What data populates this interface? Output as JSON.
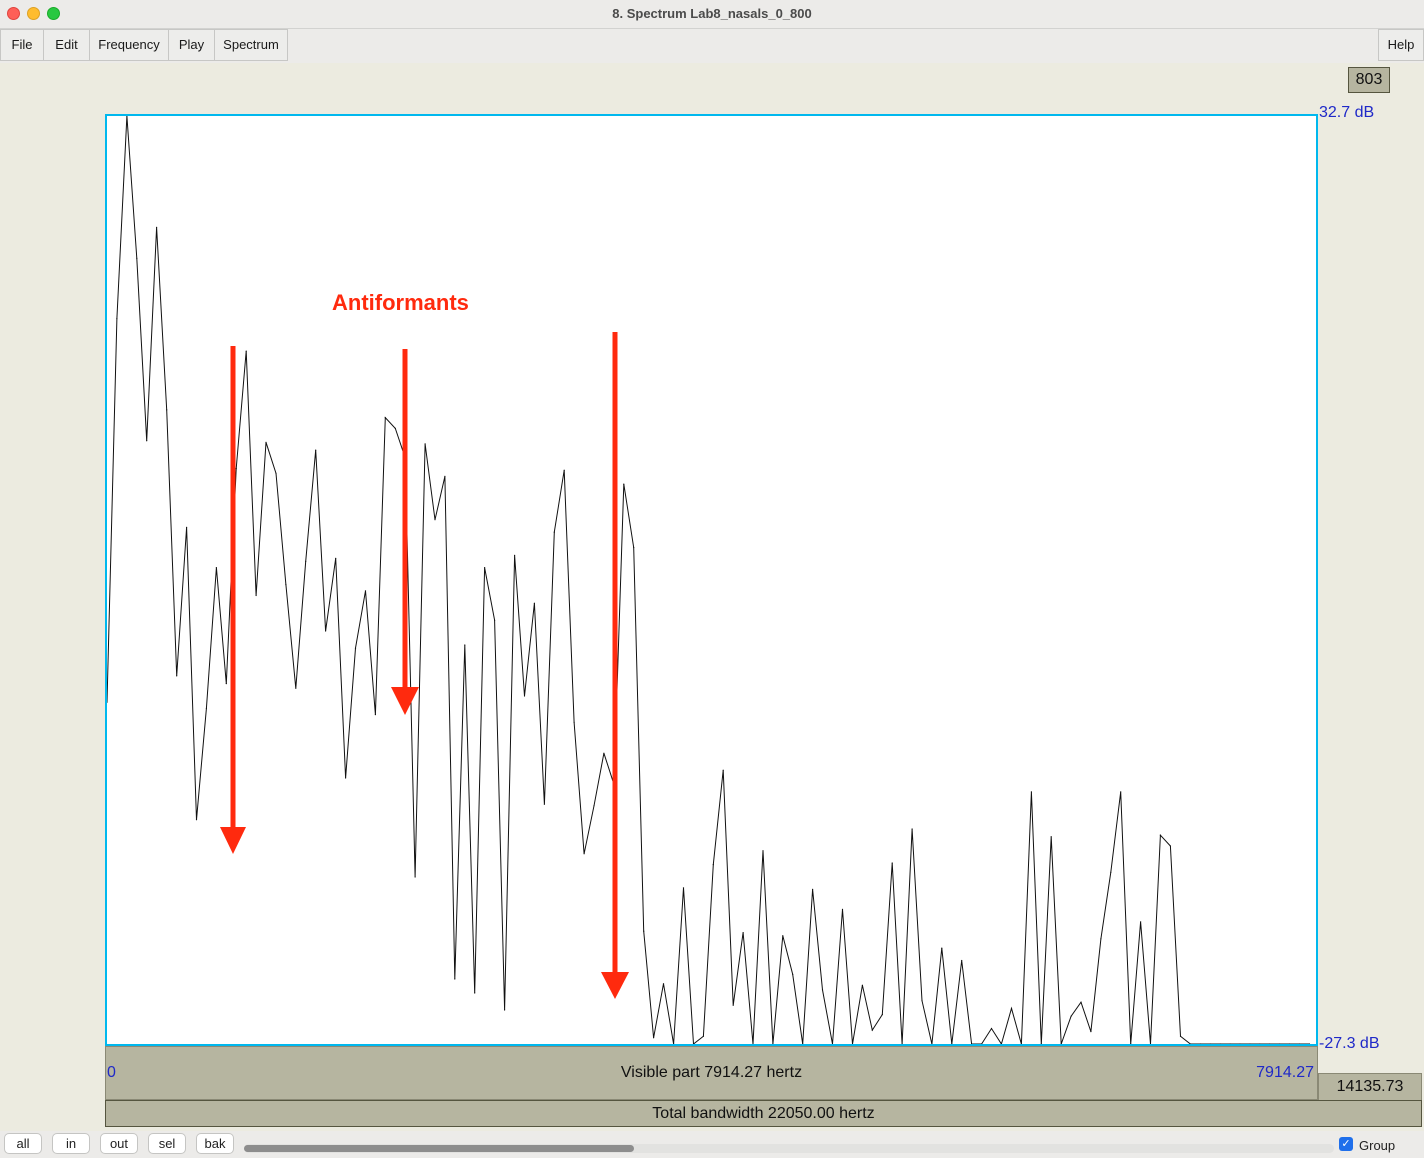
{
  "window": {
    "title": "8. Spectrum Lab8_nasals_0_800"
  },
  "menu": {
    "file": "File",
    "edit": "Edit",
    "frequency": "Frequency",
    "play": "Play",
    "spectrum": "Spectrum",
    "help": "Help"
  },
  "cursor_box": "803",
  "axis": {
    "db_top": "32.7 dB",
    "db_bottom": "-27.3 dB",
    "x_left": "0",
    "x_right": "7914.27",
    "visible_part": "Visible part 7914.27 hertz",
    "side_value": "14135.73",
    "total_bandwidth": "Total bandwidth 22050.00 hertz"
  },
  "annotation": {
    "label": "Antiformants",
    "color": "#ff2a0e"
  },
  "zoom_buttons": {
    "all": "all",
    "in": "in",
    "out": "out",
    "sel": "sel",
    "bak": "bak"
  },
  "group": {
    "label": "Group",
    "checked": true
  },
  "colors": {
    "plot_border": "#00b8ee",
    "axis_text": "#1f29c8",
    "panel": "#b6b5a0"
  },
  "chart_data": {
    "type": "line",
    "xlabel": "",
    "ylabel": "",
    "xlim": [
      0,
      7914.27
    ],
    "ylim": [
      -27.3,
      32.7
    ],
    "x": [
      0,
      65,
      130,
      195,
      260,
      325,
      391,
      456,
      521,
      586,
      651,
      716,
      781,
      846,
      911,
      976,
      1041,
      1106,
      1171,
      1236,
      1301,
      1366,
      1431,
      1497,
      1562,
      1627,
      1692,
      1757,
      1822,
      1887,
      1952,
      2017,
      2082,
      2147,
      2212,
      2277,
      2342,
      2407,
      2472,
      2537,
      2603,
      2668,
      2733,
      2798,
      2863,
      2928,
      2993,
      3058,
      3123,
      3188,
      3253,
      3318,
      3383,
      3448,
      3513,
      3578,
      3643,
      3709,
      3774,
      3839,
      3904,
      3969,
      4034,
      4099,
      4164,
      4229,
      4294,
      4359,
      4424,
      4489,
      4554,
      4619,
      4684,
      4749,
      4815,
      4880,
      4945,
      5010,
      5075,
      5140,
      5205,
      5270,
      5335,
      5400,
      5465,
      5530,
      5595,
      5660,
      5725,
      5790,
      5855,
      5921,
      5986,
      6051,
      6116,
      6181,
      6246,
      6311,
      6376,
      6441,
      6506,
      6571,
      6636,
      6701,
      6766,
      6831,
      6896,
      6961,
      7027,
      7092,
      7157,
      7222,
      7287,
      7352,
      7417,
      7482,
      7547,
      7612,
      7677,
      7742,
      7807,
      7872
    ],
    "y": [
      -5.2,
      19.6,
      32.7,
      23.5,
      11.7,
      25.5,
      13.7,
      -3.5,
      6.1,
      -12.8,
      -5.6,
      3.5,
      -4.0,
      9.9,
      17.5,
      1.7,
      11.6,
      9.6,
      2.4,
      -4.3,
      3.9,
      11.1,
      -0.6,
      4.1,
      -10.1,
      -1.7,
      2.0,
      -6.0,
      13.2,
      12.5,
      10.6,
      -16.5,
      11.5,
      6.6,
      9.4,
      -23.1,
      -1.5,
      -24.0,
      3.5,
      0.1,
      -25.1,
      4.3,
      -4.8,
      1.2,
      -11.8,
      5.8,
      9.8,
      -6.5,
      -15.0,
      -11.9,
      -8.5,
      -10.5,
      8.9,
      4.8,
      -20.0,
      -26.9,
      -23.4,
      -27.3,
      -17.2,
      -27.3,
      -26.8,
      -15.7,
      -9.6,
      -24.8,
      -20.1,
      -27.3,
      -14.8,
      -27.3,
      -20.3,
      -22.8,
      -27.3,
      -17.3,
      -23.8,
      -27.3,
      -18.6,
      -27.3,
      -23.5,
      -26.4,
      -25.4,
      -15.6,
      -27.3,
      -13.4,
      -24.5,
      -27.3,
      -21.1,
      -27.3,
      -21.9,
      -27.3,
      -27.3,
      -26.3,
      -27.3,
      -25.0,
      -27.3,
      -11.0,
      -27.3,
      -13.9,
      -27.3,
      -25.5,
      -24.6,
      -26.5,
      -20.5,
      -16.2,
      -11.0,
      -27.3,
      -19.4,
      -27.3,
      -13.8,
      -14.5,
      -26.8,
      -27.3,
      -27.3,
      -27.3,
      -27.3,
      -27.3,
      -27.3,
      -27.3,
      -27.3,
      -27.3,
      -27.3,
      -27.3,
      -27.3,
      -27.3
    ]
  }
}
